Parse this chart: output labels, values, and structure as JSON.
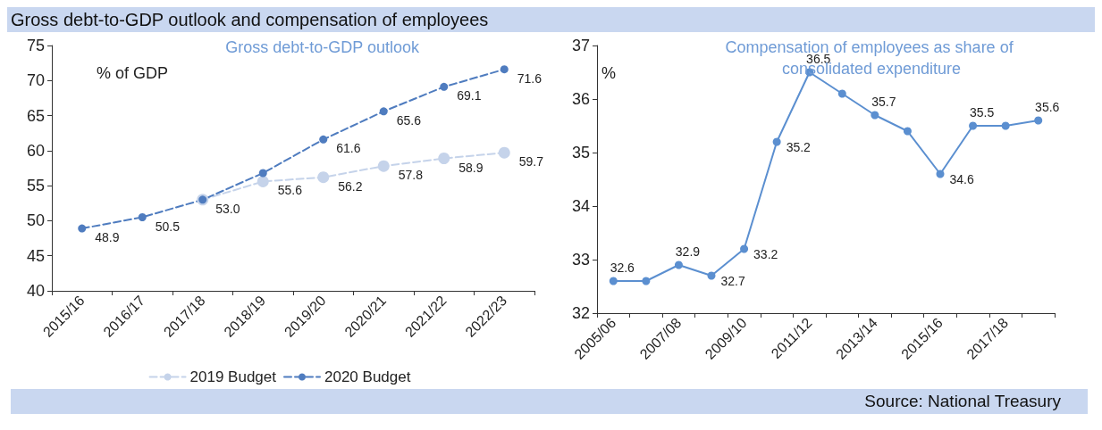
{
  "chart_data": [
    {
      "type": "line",
      "title": "Gross debt-to-GDP outlook and compensation of employees",
      "subtitle": "Gross debt-to-GDP outlook",
      "ylabel": "% of GDP",
      "categories": [
        "2015/16",
        "2016/17",
        "2017/18",
        "2018/19",
        "2019/20",
        "2020/21",
        "2021/22",
        "2022/23"
      ],
      "series": [
        {
          "name": "2019 Budget",
          "color": "#c5d3ea",
          "values": [
            null,
            null,
            53.0,
            55.6,
            56.2,
            57.8,
            58.9,
            59.7
          ],
          "value_labels": [
            null,
            null,
            null,
            "55.6",
            "56.2",
            "57.8",
            "58.9",
            "59.7"
          ]
        },
        {
          "name": "2020 Budget",
          "color": "#4f7cbf",
          "values": [
            48.9,
            50.5,
            53.0,
            56.8,
            61.6,
            65.6,
            69.1,
            71.6
          ],
          "value_labels": [
            "48.9",
            "50.5",
            "53.0",
            null,
            "61.6",
            "65.6",
            "69.1",
            "71.6"
          ]
        }
      ],
      "ylim": [
        40,
        75
      ],
      "yticks": [
        40,
        45,
        50,
        55,
        60,
        65,
        70,
        75
      ],
      "grid": false,
      "legend": "bottom",
      "marker": "circle",
      "line_style": "dashed"
    },
    {
      "type": "line",
      "title": "Compensation of employees as share of consolidated expenditure",
      "ylabel": "%",
      "categories": [
        "2005/06",
        null,
        "2007/08",
        null,
        "2009/10",
        null,
        "2011/12",
        null,
        "2013/14",
        null,
        "2015/16",
        null,
        "2017/18",
        null
      ],
      "series": [
        {
          "color": "#5b8fd0",
          "values": [
            32.6,
            32.6,
            32.9,
            32.7,
            33.2,
            35.2,
            36.5,
            36.1,
            35.7,
            35.4,
            34.6,
            35.5,
            35.5,
            35.6
          ],
          "value_labels": [
            "32.6",
            null,
            "32.9",
            "32.7",
            "33.2",
            "35.2",
            "36.5",
            null,
            "35.7",
            null,
            "34.6",
            "35.5",
            null,
            "35.6"
          ]
        }
      ],
      "ylim": [
        32,
        37
      ],
      "yticks": [
        32,
        33,
        34,
        35,
        36,
        37
      ],
      "grid": false,
      "legend": false,
      "marker": "circle",
      "line_style": "solid",
      "annotations": [
        "Source: National Treasury"
      ]
    }
  ]
}
